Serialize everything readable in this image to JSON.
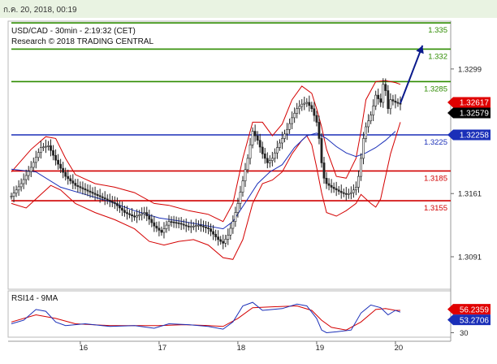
{
  "header": {
    "datetime": "ก.ค. 20, 2018, 00:19"
  },
  "chart_data": {
    "type": "candlestick",
    "title": "USD/CAD - 30min - 2:19:32 (CET)",
    "subtitle": "Research © 2018 TRADING CENTRAL",
    "x_ticks": [
      "16",
      "17",
      "18",
      "19",
      "20"
    ],
    "y_ticks": [
      "1.3299",
      "1.3161",
      "1.3091"
    ],
    "ylim": [
      1.3055,
      1.3352
    ],
    "levels": [
      {
        "label": "1.335",
        "value": 1.335,
        "color": "#2e8b00"
      },
      {
        "label": "1.332",
        "value": 1.3321,
        "color": "#2e8b00"
      },
      {
        "label": "1.3285",
        "value": 1.3285,
        "color": "#2e8b00"
      },
      {
        "label": "1.3225",
        "value": 1.3226,
        "color": "#1a2fb8"
      },
      {
        "label": "1.3185",
        "value": 1.3186,
        "color": "#d10000"
      },
      {
        "label": "1.3155",
        "value": 1.3153,
        "color": "#d10000"
      }
    ],
    "price_badges": [
      {
        "label": "1.32617",
        "value": 1.3262,
        "color": "#e00000"
      },
      {
        "label": "1.32579",
        "value": 1.3258,
        "color": "#000000"
      },
      {
        "label": "1.32258",
        "value": 1.3226,
        "color": "#1a2fb8"
      }
    ],
    "close_series": [
      [
        0,
        1.3158
      ],
      [
        4,
        1.3172
      ],
      [
        8,
        1.319
      ],
      [
        12,
        1.3212
      ],
      [
        15,
        1.3214
      ],
      [
        18,
        1.3198
      ],
      [
        22,
        1.318
      ],
      [
        26,
        1.317
      ],
      [
        30,
        1.3165
      ],
      [
        34,
        1.316
      ],
      [
        38,
        1.3155
      ],
      [
        42,
        1.315
      ],
      [
        46,
        1.314
      ],
      [
        50,
        1.3135
      ],
      [
        54,
        1.314
      ],
      [
        58,
        1.3125
      ],
      [
        61,
        1.3118
      ],
      [
        64,
        1.313
      ],
      [
        68,
        1.3128
      ],
      [
        72,
        1.3124
      ],
      [
        76,
        1.3126
      ],
      [
        80,
        1.3122
      ],
      [
        84,
        1.311
      ],
      [
        86,
        1.3106
      ],
      [
        88,
        1.3115
      ],
      [
        90,
        1.313
      ],
      [
        92,
        1.315
      ],
      [
        94,
        1.3175
      ],
      [
        96,
        1.32
      ],
      [
        98,
        1.323
      ],
      [
        100,
        1.322
      ],
      [
        102,
        1.3205
      ],
      [
        104,
        1.3195
      ],
      [
        106,
        1.32
      ],
      [
        108,
        1.3212
      ],
      [
        110,
        1.3222
      ],
      [
        112,
        1.3232
      ],
      [
        114,
        1.3245
      ],
      [
        116,
        1.3255
      ],
      [
        118,
        1.326
      ],
      [
        120,
        1.3262
      ],
      [
        122,
        1.3255
      ],
      [
        124,
        1.324
      ],
      [
        125,
        1.3222
      ],
      [
        126,
        1.3195
      ],
      [
        127,
        1.3178
      ],
      [
        128,
        1.3172
      ],
      [
        130,
        1.3168
      ],
      [
        132,
        1.3165
      ],
      [
        134,
        1.3162
      ],
      [
        136,
        1.316
      ],
      [
        138,
        1.3162
      ],
      [
        140,
        1.3168
      ],
      [
        141,
        1.318
      ],
      [
        142,
        1.32
      ],
      [
        143,
        1.3222
      ],
      [
        144,
        1.3235
      ],
      [
        146,
        1.3248
      ],
      [
        147,
        1.3258
      ],
      [
        148,
        1.327
      ],
      [
        150,
        1.3262
      ],
      [
        151,
        1.3282
      ],
      [
        152,
        1.3275
      ],
      [
        153,
        1.3255
      ],
      [
        154,
        1.3265
      ],
      [
        156,
        1.3262
      ],
      [
        158,
        1.326
      ]
    ],
    "moving_average": [
      [
        0,
        1.3188
      ],
      [
        10,
        1.3185
      ],
      [
        20,
        1.3168
      ],
      [
        30,
        1.316
      ],
      [
        40,
        1.3152
      ],
      [
        50,
        1.3142
      ],
      [
        60,
        1.3134
      ],
      [
        70,
        1.313
      ],
      [
        80,
        1.3125
      ],
      [
        86,
        1.3122
      ],
      [
        90,
        1.313
      ],
      [
        96,
        1.3155
      ],
      [
        100,
        1.3172
      ],
      [
        105,
        1.3185
      ],
      [
        110,
        1.3193
      ],
      [
        115,
        1.3212
      ],
      [
        120,
        1.3225
      ],
      [
        124,
        1.3228
      ],
      [
        128,
        1.3222
      ],
      [
        132,
        1.3213
      ],
      [
        136,
        1.3206
      ],
      [
        140,
        1.3202
      ],
      [
        144,
        1.3206
      ],
      [
        148,
        1.3212
      ],
      [
        152,
        1.322
      ],
      [
        156,
        1.323
      ]
    ],
    "bb_upper": [
      [
        0,
        1.3185
      ],
      [
        8,
        1.321
      ],
      [
        14,
        1.3224
      ],
      [
        18,
        1.3222
      ],
      [
        22,
        1.32
      ],
      [
        26,
        1.3182
      ],
      [
        34,
        1.3172
      ],
      [
        42,
        1.3168
      ],
      [
        50,
        1.3162
      ],
      [
        58,
        1.315
      ],
      [
        64,
        1.3148
      ],
      [
        72,
        1.3142
      ],
      [
        80,
        1.3138
      ],
      [
        86,
        1.313
      ],
      [
        90,
        1.315
      ],
      [
        94,
        1.32
      ],
      [
        98,
        1.324
      ],
      [
        102,
        1.324
      ],
      [
        106,
        1.3225
      ],
      [
        110,
        1.3238
      ],
      [
        114,
        1.3265
      ],
      [
        118,
        1.328
      ],
      [
        122,
        1.3272
      ],
      [
        124,
        1.3255
      ],
      [
        126,
        1.3235
      ],
      [
        128,
        1.321
      ],
      [
        132,
        1.318
      ],
      [
        136,
        1.3178
      ],
      [
        140,
        1.32
      ],
      [
        142,
        1.323
      ],
      [
        144,
        1.3265
      ],
      [
        148,
        1.3285
      ],
      [
        152,
        1.3286
      ],
      [
        156,
        1.3284
      ],
      [
        158,
        1.3282
      ]
    ],
    "bb_lower": [
      [
        0,
        1.315
      ],
      [
        6,
        1.3145
      ],
      [
        12,
        1.316
      ],
      [
        16,
        1.317
      ],
      [
        20,
        1.3165
      ],
      [
        26,
        1.315
      ],
      [
        34,
        1.314
      ],
      [
        42,
        1.3132
      ],
      [
        50,
        1.3122
      ],
      [
        56,
        1.3108
      ],
      [
        62,
        1.3104
      ],
      [
        68,
        1.3108
      ],
      [
        74,
        1.311
      ],
      [
        80,
        1.3104
      ],
      [
        86,
        1.309
      ],
      [
        90,
        1.3088
      ],
      [
        94,
        1.311
      ],
      [
        98,
        1.315
      ],
      [
        102,
        1.3172
      ],
      [
        106,
        1.3176
      ],
      [
        110,
        1.3185
      ],
      [
        114,
        1.3205
      ],
      [
        118,
        1.322
      ],
      [
        120,
        1.3225
      ],
      [
        122,
        1.3215
      ],
      [
        124,
        1.319
      ],
      [
        126,
        1.3162
      ],
      [
        128,
        1.314
      ],
      [
        132,
        1.3136
      ],
      [
        136,
        1.3142
      ],
      [
        140,
        1.315
      ],
      [
        142,
        1.316
      ],
      [
        146,
        1.315
      ],
      [
        148,
        1.3146
      ],
      [
        150,
        1.3155
      ],
      [
        154,
        1.3205
      ],
      [
        158,
        1.324
      ]
    ],
    "projection": {
      "from": [
        158,
        1.3261
      ],
      "to": [
        167,
        1.3325
      ],
      "color": "#0a1a8c"
    },
    "rsi": {
      "label": "RSI14 - 9MA",
      "ylim": [
        25,
        75
      ],
      "y_ticks": [
        "30"
      ],
      "value_badges": [
        {
          "label": "56.2359",
          "value": 56.2,
          "color": "#e00000"
        },
        {
          "label": "53.2706",
          "value": 53.3,
          "color": "#1a2fb8"
        }
      ],
      "rsi_series": [
        [
          0,
          40
        ],
        [
          5,
          44
        ],
        [
          10,
          56
        ],
        [
          14,
          54
        ],
        [
          18,
          42
        ],
        [
          22,
          38
        ],
        [
          30,
          40
        ],
        [
          40,
          37
        ],
        [
          50,
          38
        ],
        [
          58,
          35
        ],
        [
          64,
          40
        ],
        [
          72,
          39
        ],
        [
          80,
          37
        ],
        [
          86,
          34
        ],
        [
          90,
          42
        ],
        [
          94,
          60
        ],
        [
          98,
          64
        ],
        [
          102,
          55
        ],
        [
          110,
          57
        ],
        [
          116,
          62
        ],
        [
          120,
          60
        ],
        [
          124,
          46
        ],
        [
          126,
          33
        ],
        [
          128,
          30
        ],
        [
          132,
          31
        ],
        [
          138,
          33
        ],
        [
          142,
          52
        ],
        [
          146,
          61
        ],
        [
          150,
          58
        ],
        [
          153,
          50
        ],
        [
          156,
          55
        ],
        [
          158,
          53
        ]
      ],
      "ma_series": [
        [
          0,
          42
        ],
        [
          10,
          50
        ],
        [
          18,
          46
        ],
        [
          26,
          40
        ],
        [
          40,
          38
        ],
        [
          50,
          38
        ],
        [
          60,
          38
        ],
        [
          70,
          39
        ],
        [
          80,
          38
        ],
        [
          86,
          37
        ],
        [
          92,
          46
        ],
        [
          98,
          58
        ],
        [
          106,
          59
        ],
        [
          116,
          60
        ],
        [
          122,
          55
        ],
        [
          126,
          44
        ],
        [
          130,
          36
        ],
        [
          136,
          33
        ],
        [
          142,
          42
        ],
        [
          148,
          56
        ],
        [
          152,
          57
        ],
        [
          156,
          55
        ],
        [
          158,
          55
        ]
      ]
    }
  }
}
